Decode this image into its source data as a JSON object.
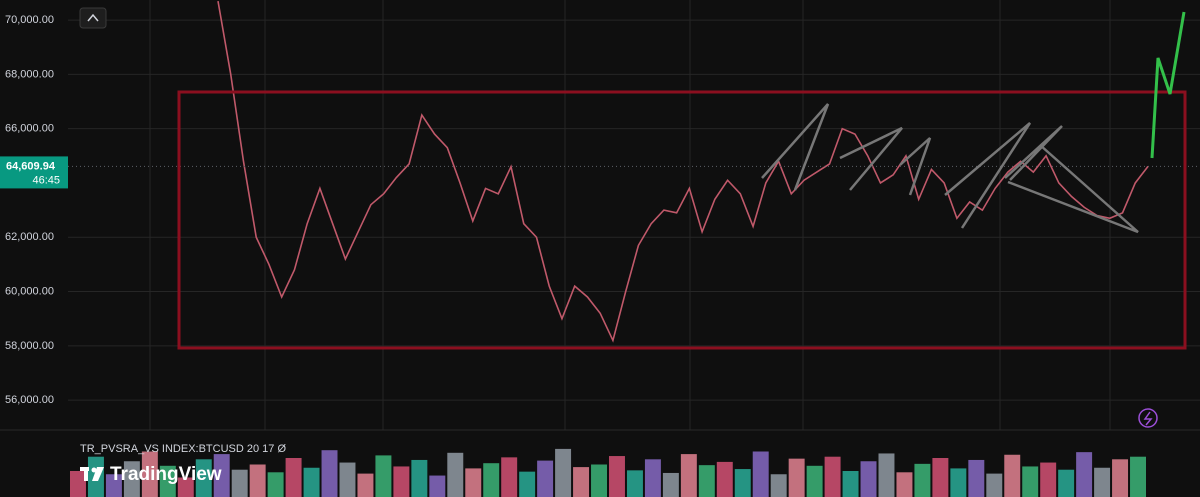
{
  "chart_data": [
    {
      "type": "line",
      "symbol_pane": "price",
      "color": "#c0596a",
      "values": [
        70700,
        68000,
        64800,
        62000,
        61000,
        59800,
        60800,
        62500,
        63800,
        62500,
        61200,
        62200,
        63200,
        63600,
        64200,
        64700,
        66500,
        65800,
        65300,
        64000,
        62600,
        63800,
        63600,
        64600,
        62500,
        62000,
        60200,
        59000,
        60200,
        59800,
        59200,
        58200,
        60000,
        61700,
        62500,
        63000,
        62900,
        63800,
        62200,
        63400,
        64100,
        63600,
        62400,
        64000,
        64800,
        63600,
        64100,
        64400,
        64700,
        66000,
        65800,
        65000,
        64000,
        64300,
        65000,
        63400,
        64500,
        64000,
        62700,
        63300,
        63000,
        63800,
        64400,
        64800,
        64400,
        65000,
        64000,
        63500,
        63100,
        62800,
        62700,
        62900,
        64000,
        64609.94
      ],
      "ylim": [
        54900,
        70740
      ],
      "yticks": [
        {
          "value": 56000,
          "label": "56,000.00"
        },
        {
          "value": 58000,
          "label": "58,000.00"
        },
        {
          "value": 60000,
          "label": "60,000.00"
        },
        {
          "value": 62000,
          "label": "62,000.00"
        },
        {
          "value": 66000,
          "label": "66,000.00"
        },
        {
          "value": 68000,
          "label": "68,000.00"
        },
        {
          "value": 70000,
          "label": "70,000.00"
        }
      ],
      "grid": true,
      "last_price": {
        "value": 64609.94,
        "label": "64,609.94"
      },
      "countdown": "46:45",
      "price_label_color": "#089981"
    },
    {
      "type": "bar",
      "title": "TR_PVSRA_VS INDEX:BTCUSD 20 17 Ø",
      "colors": [
        "#e0557a",
        "#2bb5a0",
        "#8e6fd0",
        "#9aa4ae",
        "#f08a9a",
        "#3fbf7f"
      ],
      "values": [
        40,
        62,
        35,
        55,
        70,
        48,
        30,
        58,
        66,
        42,
        50,
        38,
        60,
        45,
        72,
        53,
        36,
        64,
        47,
        57,
        33,
        68,
        44,
        52,
        61,
        39,
        56,
        74,
        46,
        50,
        63,
        41,
        58,
        37,
        66,
        49,
        54,
        43,
        70,
        35,
        59,
        48,
        62,
        40,
        55,
        67,
        38,
        51,
        60,
        44,
        57,
        36,
        65,
        47,
        53,
        42,
        69,
        45,
        58,
        62
      ],
      "ylim": [
        0,
        100
      ]
    }
  ]
}
